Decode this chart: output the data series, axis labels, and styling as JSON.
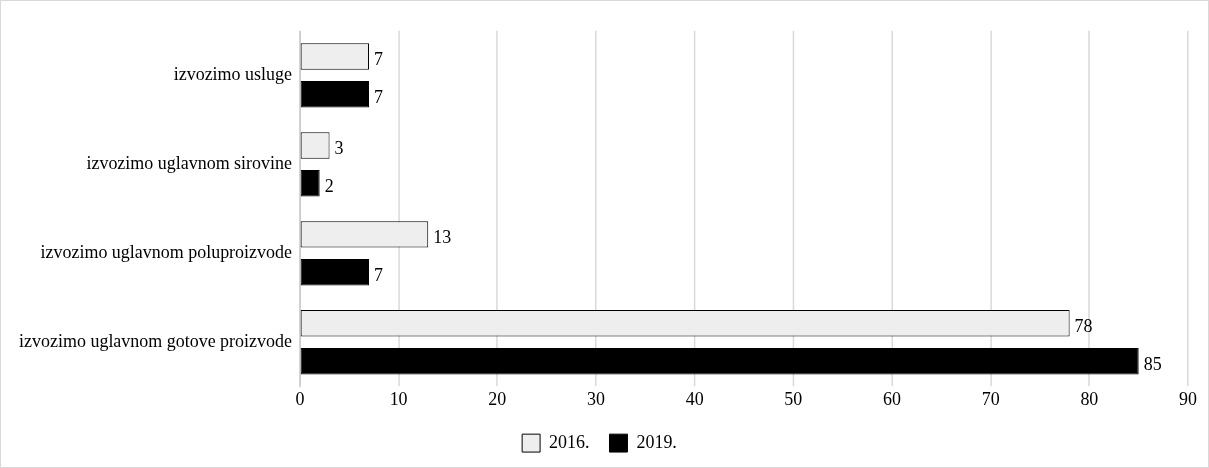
{
  "chart_data": {
    "type": "bar",
    "orientation": "horizontal",
    "categories": [
      "izvozimo usluge",
      "izvozimo uglavnom sirovine",
      "izvozimo uglavnom poluproizvode",
      "izvozimo uglavnom gotove proizvode"
    ],
    "series": [
      {
        "name": "2016.",
        "color": "#eeeeee",
        "values": [
          7,
          3,
          13,
          78
        ]
      },
      {
        "name": "2019.",
        "color": "#000000",
        "values": [
          7,
          2,
          7,
          85
        ]
      }
    ],
    "xlim": [
      0,
      90
    ],
    "xticks": [
      0,
      10,
      20,
      30,
      40,
      50,
      60,
      70,
      80,
      90
    ],
    "grid": "x",
    "legend": "bottom",
    "data_labels": true
  }
}
